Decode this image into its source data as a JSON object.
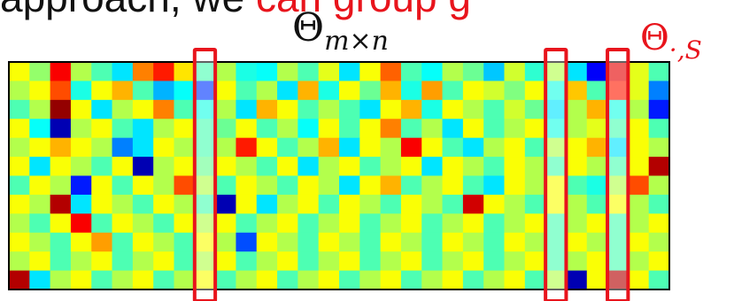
{
  "caption": {
    "prefix": "approach, we",
    "highlight": "can group g"
  },
  "matrix_label": {
    "symbol": "Θ",
    "subscript": "m×n"
  },
  "column_label": {
    "symbol": "Θ",
    "subscript": "·,S"
  },
  "colors": {
    "highlight_box": "#e8141c",
    "text": "#111111"
  },
  "heatmap": {
    "rows": 12,
    "cols": 32,
    "highlighted_columns": [
      9,
      26,
      29
    ],
    "values": [
      [
        0.62,
        0.52,
        0.88,
        0.55,
        0.45,
        0.35,
        0.75,
        0.85,
        0.65,
        0.45,
        0.55,
        0.4,
        0.38,
        0.55,
        0.45,
        0.6,
        0.35,
        0.62,
        0.78,
        0.45,
        0.38,
        0.55,
        0.48,
        0.32,
        0.58,
        0.42,
        0.55,
        0.35,
        0.12,
        0.9,
        0.6,
        0.45
      ],
      [
        0.55,
        0.62,
        0.8,
        0.4,
        0.62,
        0.7,
        0.45,
        0.3,
        0.38,
        0.18,
        0.62,
        0.45,
        0.55,
        0.35,
        0.7,
        0.4,
        0.62,
        0.48,
        0.7,
        0.4,
        0.72,
        0.45,
        0.62,
        0.58,
        0.5,
        0.62,
        0.4,
        0.68,
        0.45,
        0.85,
        0.6,
        0.25
      ],
      [
        0.45,
        0.55,
        0.98,
        0.62,
        0.35,
        0.55,
        0.62,
        0.75,
        0.45,
        0.4,
        0.55,
        0.35,
        0.7,
        0.62,
        0.45,
        0.55,
        0.45,
        0.35,
        0.62,
        0.7,
        0.4,
        0.62,
        0.55,
        0.45,
        0.58,
        0.48,
        0.35,
        0.55,
        0.7,
        0.4,
        0.55,
        0.15
      ],
      [
        0.62,
        0.38,
        0.05,
        0.55,
        0.62,
        0.45,
        0.35,
        0.55,
        0.62,
        0.45,
        0.48,
        0.62,
        0.45,
        0.55,
        0.38,
        0.62,
        0.45,
        0.62,
        0.75,
        0.45,
        0.55,
        0.35,
        0.62,
        0.45,
        0.55,
        0.62,
        0.4,
        0.55,
        0.6,
        0.45,
        0.62,
        0.45
      ],
      [
        0.55,
        0.62,
        0.7,
        0.62,
        0.55,
        0.25,
        0.35,
        0.62,
        0.55,
        0.45,
        0.55,
        0.85,
        0.62,
        0.45,
        0.55,
        0.7,
        0.35,
        0.62,
        0.55,
        0.88,
        0.62,
        0.45,
        0.35,
        0.55,
        0.62,
        0.45,
        0.55,
        0.62,
        0.7,
        0.35,
        0.62,
        0.55
      ],
      [
        0.62,
        0.35,
        0.62,
        0.55,
        0.45,
        0.62,
        0.05,
        0.55,
        0.62,
        0.48,
        0.62,
        0.55,
        0.45,
        0.62,
        0.35,
        0.55,
        0.62,
        0.45,
        0.55,
        0.62,
        0.35,
        0.62,
        0.55,
        0.45,
        0.62,
        0.55,
        0.45,
        0.62,
        0.55,
        0.45,
        0.62,
        0.95
      ],
      [
        0.45,
        0.62,
        0.55,
        0.15,
        0.62,
        0.45,
        0.62,
        0.55,
        0.8,
        0.55,
        0.45,
        0.62,
        0.55,
        0.45,
        0.62,
        0.55,
        0.35,
        0.62,
        0.7,
        0.45,
        0.55,
        0.62,
        0.45,
        0.35,
        0.62,
        0.55,
        0.62,
        0.45,
        0.4,
        0.55,
        0.8,
        0.55
      ],
      [
        0.62,
        0.55,
        0.95,
        0.35,
        0.62,
        0.55,
        0.45,
        0.62,
        0.55,
        0.45,
        0.05,
        0.62,
        0.35,
        0.55,
        0.62,
        0.45,
        0.62,
        0.55,
        0.45,
        0.62,
        0.55,
        0.45,
        0.92,
        0.62,
        0.55,
        0.45,
        0.62,
        0.55,
        0.45,
        0.62,
        0.55,
        0.45
      ],
      [
        0.55,
        0.45,
        0.62,
        0.88,
        0.45,
        0.62,
        0.55,
        0.45,
        0.62,
        0.55,
        0.62,
        0.45,
        0.55,
        0.62,
        0.45,
        0.55,
        0.62,
        0.45,
        0.55,
        0.62,
        0.45,
        0.55,
        0.62,
        0.45,
        0.55,
        0.62,
        0.45,
        0.55,
        0.62,
        0.45,
        0.55,
        0.62
      ],
      [
        0.62,
        0.55,
        0.45,
        0.62,
        0.72,
        0.45,
        0.62,
        0.55,
        0.45,
        0.62,
        0.55,
        0.2,
        0.62,
        0.55,
        0.45,
        0.62,
        0.55,
        0.45,
        0.62,
        0.55,
        0.45,
        0.62,
        0.55,
        0.45,
        0.62,
        0.55,
        0.45,
        0.62,
        0.55,
        0.45,
        0.62,
        0.55
      ],
      [
        0.55,
        0.62,
        0.45,
        0.55,
        0.62,
        0.45,
        0.55,
        0.62,
        0.45,
        0.55,
        0.62,
        0.45,
        0.55,
        0.62,
        0.45,
        0.55,
        0.62,
        0.45,
        0.55,
        0.62,
        0.45,
        0.55,
        0.62,
        0.45,
        0.55,
        0.62,
        0.45,
        0.55,
        0.62,
        0.45,
        0.55,
        0.62
      ],
      [
        0.95,
        0.35,
        0.55,
        0.62,
        0.45,
        0.55,
        0.62,
        0.45,
        0.55,
        0.62,
        0.45,
        0.55,
        0.62,
        0.45,
        0.55,
        0.62,
        0.45,
        0.55,
        0.62,
        0.45,
        0.55,
        0.62,
        0.45,
        0.55,
        0.62,
        0.45,
        0.55,
        0.05,
        0.62,
        0.95,
        0.62,
        0.45
      ]
    ]
  }
}
